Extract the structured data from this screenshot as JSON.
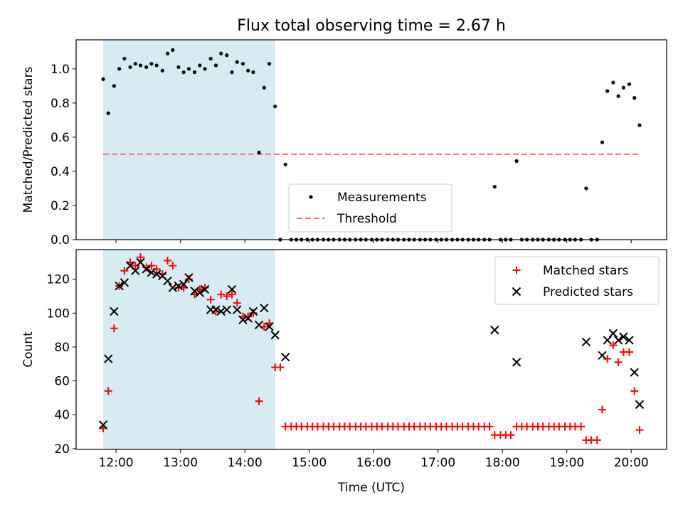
{
  "chart_data": [
    {
      "type": "scatter",
      "title": "Flux total observing time = 2.67 h",
      "xlabel": "",
      "ylabel": "Matched/Predicted stars",
      "xlim_hours": [
        11.38,
        20.55
      ],
      "ylim": [
        0,
        1.17
      ],
      "yticks": [
        0.0,
        0.2,
        0.4,
        0.6,
        0.8,
        1.0
      ],
      "y_tick_labels": [
        "0.0",
        "0.2",
        "0.4",
        "0.6",
        "0.8",
        "1.0"
      ],
      "shaded_span_hours": [
        11.8,
        14.47
      ],
      "shade_color": "#add8e6",
      "legend": {
        "placement": "lower-center",
        "entries": [
          "Measurements",
          "Threshold"
        ]
      },
      "threshold": {
        "name": "Threshold",
        "value": 0.5,
        "x_range_hours": [
          11.8,
          20.13
        ],
        "color": "#ff7070",
        "style": "dashed"
      },
      "series": [
        {
          "name": "Measurements",
          "color": "#000000",
          "marker": "dot",
          "x_hours": [
            11.8,
            11.88,
            11.97,
            12.05,
            12.13,
            12.22,
            12.3,
            12.38,
            12.47,
            12.55,
            12.63,
            12.72,
            12.8,
            12.88,
            12.97,
            13.05,
            13.13,
            13.22,
            13.3,
            13.38,
            13.47,
            13.55,
            13.63,
            13.72,
            13.8,
            13.88,
            13.97,
            14.05,
            14.13,
            14.22,
            14.3,
            14.38,
            14.47,
            14.55,
            14.63,
            14.72,
            14.8,
            14.88,
            14.97,
            15.05,
            15.13,
            15.22,
            15.3,
            15.38,
            15.47,
            15.55,
            15.63,
            15.72,
            15.8,
            15.88,
            15.97,
            16.05,
            16.13,
            16.22,
            16.3,
            16.38,
            16.47,
            16.55,
            16.63,
            16.72,
            16.8,
            16.88,
            16.97,
            17.05,
            17.13,
            17.22,
            17.3,
            17.38,
            17.47,
            17.55,
            17.63,
            17.72,
            17.8,
            17.88,
            17.97,
            18.05,
            18.13,
            18.22,
            18.3,
            18.38,
            18.47,
            18.55,
            18.63,
            18.72,
            18.8,
            18.88,
            18.97,
            19.05,
            19.13,
            19.22,
            19.3,
            19.38,
            19.47,
            19.55,
            19.63,
            19.72,
            19.8,
            19.88,
            19.97,
            20.05,
            20.13
          ],
          "values": [
            0.94,
            0.74,
            0.9,
            1.0,
            1.06,
            1.01,
            1.03,
            1.02,
            1.01,
            1.03,
            1.02,
            0.99,
            1.09,
            1.11,
            1.01,
            0.98,
            1.0,
            0.98,
            1.02,
            1.0,
            1.06,
            1.02,
            1.09,
            1.08,
            0.98,
            1.04,
            1.03,
            0.99,
            0.98,
            0.51,
            0.89,
            1.03,
            0.78,
            0.0,
            0.44,
            0.0,
            0.0,
            0.0,
            0.0,
            0.0,
            0.0,
            0.0,
            0.0,
            0.0,
            0.0,
            0.0,
            0.0,
            0.0,
            0.0,
            0.0,
            0.0,
            0.0,
            0.0,
            0.0,
            0.0,
            0.0,
            0.0,
            0.0,
            0.0,
            0.0,
            0.0,
            0.0,
            0.0,
            0.0,
            0.0,
            0.0,
            0.0,
            0.0,
            0.0,
            0.0,
            0.0,
            0.0,
            0.0,
            0.31,
            0.0,
            0.0,
            0.0,
            0.46,
            0.0,
            0.0,
            0.0,
            0.0,
            0.0,
            0.0,
            0.0,
            0.0,
            0.0,
            0.0,
            0.0,
            0.0,
            0.3,
            0.0,
            0.0,
            0.57,
            0.87,
            0.92,
            0.84,
            0.89,
            0.91,
            0.83,
            0.67
          ]
        }
      ]
    },
    {
      "type": "scatter",
      "title": "",
      "xlabel": "Time (UTC)",
      "ylabel": "Count",
      "xlim_hours": [
        11.38,
        20.55
      ],
      "ylim": [
        19.5,
        137.5
      ],
      "yticks": [
        20,
        40,
        60,
        80,
        100,
        120
      ],
      "y_tick_labels": [
        "20",
        "40",
        "60",
        "80",
        "100",
        "120"
      ],
      "xticks_hours": [
        12,
        13,
        14,
        15,
        16,
        17,
        18,
        19,
        20
      ],
      "x_tick_labels": [
        "12:00",
        "13:00",
        "14:00",
        "15:00",
        "16:00",
        "17:00",
        "18:00",
        "19:00",
        "20:00"
      ],
      "shaded_span_hours": [
        11.8,
        14.47
      ],
      "shade_color": "#add8e6",
      "legend": {
        "placement": "top-right",
        "entries": [
          "Matched stars",
          "Predicted stars"
        ]
      },
      "series": [
        {
          "name": "Matched stars",
          "color": "#ff0000",
          "marker": "plus",
          "x_hours": [
            11.8,
            11.88,
            11.97,
            12.05,
            12.13,
            12.22,
            12.3,
            12.38,
            12.47,
            12.55,
            12.63,
            12.72,
            12.8,
            12.88,
            12.97,
            13.05,
            13.13,
            13.22,
            13.3,
            13.38,
            13.47,
            13.55,
            13.63,
            13.72,
            13.8,
            13.88,
            13.97,
            14.05,
            14.13,
            14.22,
            14.3,
            14.38,
            14.47,
            14.55,
            14.63,
            14.72,
            14.8,
            14.88,
            14.97,
            15.05,
            15.13,
            15.22,
            15.3,
            15.38,
            15.47,
            15.55,
            15.63,
            15.72,
            15.8,
            15.88,
            15.97,
            16.05,
            16.13,
            16.22,
            16.3,
            16.38,
            16.47,
            16.55,
            16.63,
            16.72,
            16.8,
            16.88,
            16.97,
            17.05,
            17.13,
            17.22,
            17.3,
            17.38,
            17.47,
            17.55,
            17.63,
            17.72,
            17.8,
            17.88,
            17.97,
            18.05,
            18.13,
            18.22,
            18.3,
            18.38,
            18.47,
            18.55,
            18.63,
            18.72,
            18.8,
            18.88,
            18.97,
            19.05,
            19.13,
            19.22,
            19.3,
            19.38,
            19.47,
            19.55,
            19.63,
            19.72,
            19.8,
            19.88,
            19.97,
            20.05,
            20.13
          ],
          "values": [
            32,
            54,
            91,
            116,
            125,
            130,
            128,
            133,
            127,
            128,
            126,
            123,
            131,
            128,
            115,
            115,
            120,
            111,
            114,
            115,
            108,
            101,
            111,
            110,
            111,
            106,
            98,
            98,
            100,
            48,
            92,
            94,
            68,
            68,
            33,
            33,
            33,
            33,
            33,
            33,
            33,
            33,
            33,
            33,
            33,
            33,
            33,
            33,
            33,
            33,
            33,
            33,
            33,
            33,
            33,
            33,
            33,
            33,
            33,
            33,
            33,
            33,
            33,
            33,
            33,
            33,
            33,
            33,
            33,
            33,
            33,
            33,
            33,
            28,
            28,
            28,
            28,
            33,
            33,
            33,
            33,
            33,
            33,
            33,
            33,
            33,
            33,
            33,
            33,
            33,
            25,
            25,
            25,
            43,
            73,
            81,
            71,
            77,
            77,
            54,
            31
          ]
        },
        {
          "name": "Predicted stars",
          "color": "#000000",
          "marker": "x",
          "x_hours": [
            11.8,
            11.88,
            11.97,
            12.05,
            12.13,
            12.22,
            12.3,
            12.38,
            12.47,
            12.55,
            12.63,
            12.72,
            12.8,
            12.88,
            12.97,
            13.05,
            13.13,
            13.22,
            13.3,
            13.38,
            13.47,
            13.55,
            13.63,
            13.72,
            13.8,
            13.88,
            13.97,
            14.05,
            14.13,
            14.22,
            14.3,
            14.38,
            14.47,
            14.63,
            17.88,
            18.22,
            19.3,
            19.55,
            19.63,
            19.72,
            19.8,
            19.88,
            19.97,
            20.05,
            20.13
          ],
          "values": [
            34,
            73,
            101,
            116,
            118,
            128,
            125,
            130,
            126,
            124,
            123,
            122,
            119,
            115,
            116,
            117,
            121,
            113,
            112,
            114,
            102,
            102,
            101,
            102,
            114,
            102,
            96,
            97,
            101,
            93,
            103,
            92,
            87,
            74,
            90,
            71,
            83,
            75,
            84,
            88,
            84,
            86,
            84,
            65,
            46
          ]
        }
      ]
    }
  ]
}
